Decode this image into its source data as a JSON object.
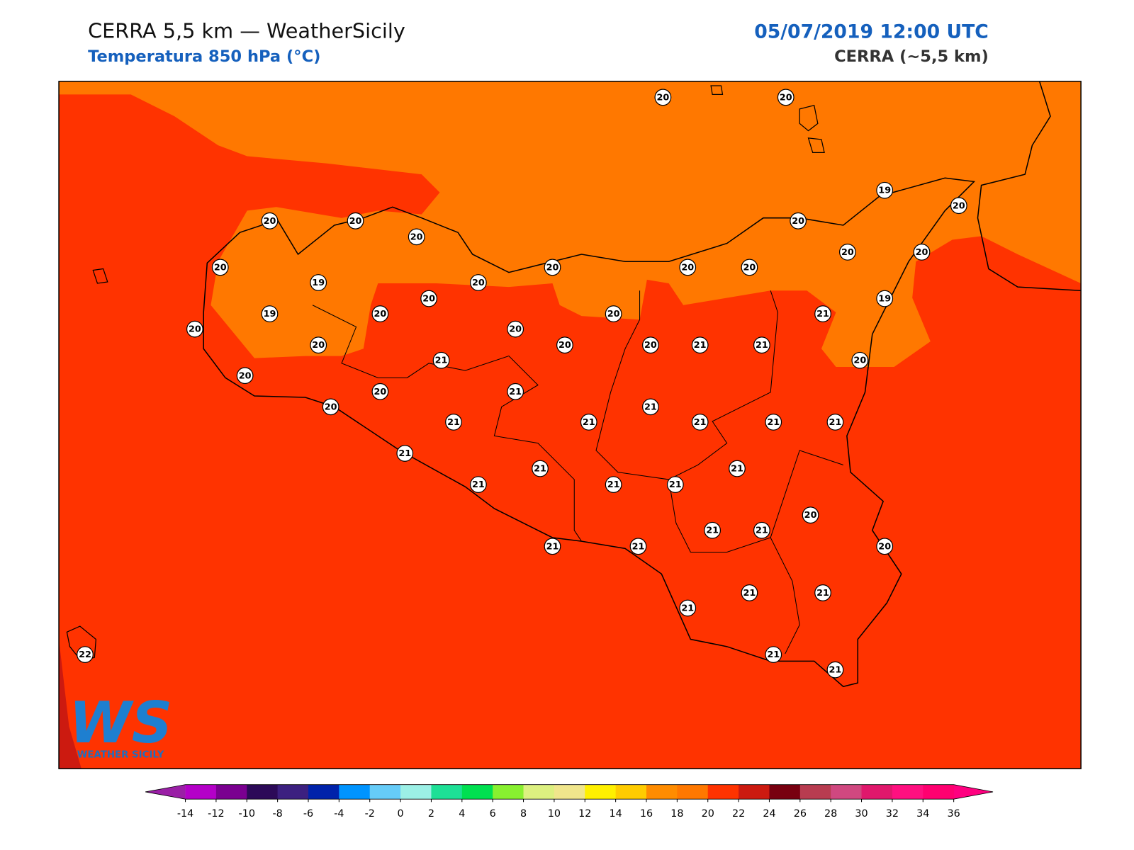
{
  "header": {
    "title": "CERRA 5,5 km — WeatherSicily",
    "subtitle": "Temperatura 850 hPa (°C)",
    "datetime": "05/07/2019 12:00 UTC",
    "model": "CERRA (~5,5 km)"
  },
  "stations": [
    20,
    20,
    19,
    20,
    20,
    20,
    20,
    20,
    20,
    20,
    20,
    20,
    20,
    20,
    19,
    20,
    20,
    19,
    19,
    20,
    20,
    21,
    20,
    20,
    20,
    20,
    20,
    21,
    21,
    21,
    20,
    20,
    20,
    21,
    20,
    21,
    21,
    21,
    21,
    21,
    21,
    21,
    21,
    21,
    21,
    21,
    21,
    20,
    21,
    21,
    20,
    21,
    21,
    21,
    21,
    21,
    21,
    21,
    22
  ],
  "colorbar": {
    "ticks": [
      -14,
      -12,
      -10,
      -8,
      -6,
      -4,
      -2,
      0,
      2,
      4,
      6,
      8,
      10,
      12,
      14,
      16,
      18,
      20,
      22,
      24,
      26,
      28,
      30,
      32,
      34,
      36
    ],
    "colors": [
      "#b400c8",
      "#7a0090",
      "#2c0a58",
      "#3c2080",
      "#0022aa",
      "#0094ff",
      "#66ccf8",
      "#9cf0e6",
      "#1ee096",
      "#00e050",
      "#88f030",
      "#dcf080",
      "#f0e68c",
      "#fff000",
      "#ffcc00",
      "#ff8c00",
      "#ff7800",
      "#ff3300",
      "#cc1a10",
      "#780010",
      "#b83c50",
      "#d04880",
      "#e0186c",
      "#ff1080",
      "#ff0070"
    ],
    "under": "#9a1fa6",
    "over": "#ff0080"
  },
  "logo": {
    "mark": "WS",
    "text": "WEATHER SICILY"
  }
}
